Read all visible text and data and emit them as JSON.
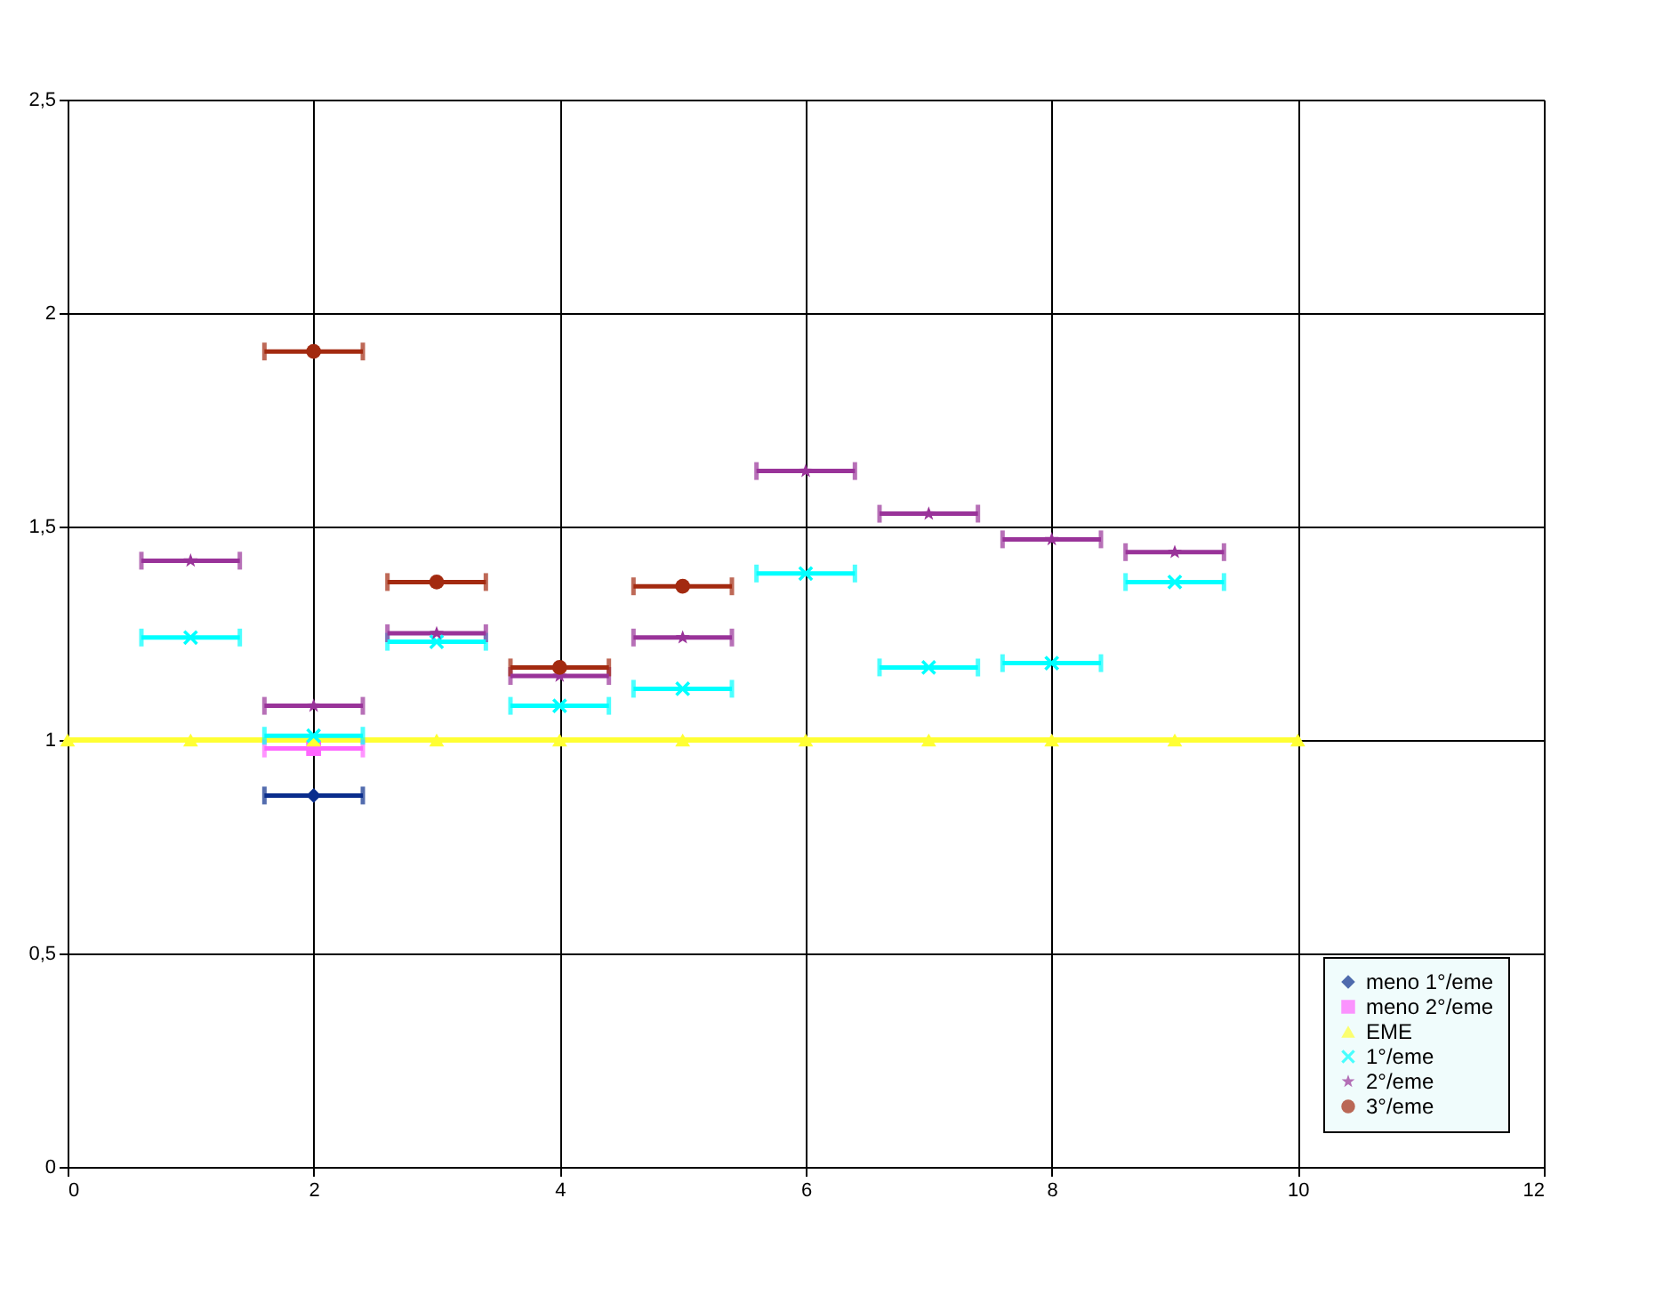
{
  "chart_data": {
    "type": "scatter",
    "xlim": [
      0,
      12
    ],
    "xticks": [
      0,
      2,
      4,
      6,
      8,
      10,
      12
    ],
    "ylim": [
      0,
      2.5
    ],
    "yticks": [
      0,
      {
        "value": 0.5,
        "label": "0,5"
      },
      1,
      {
        "value": 1.5,
        "label": "1,5"
      },
      2,
      {
        "value": 2.5,
        "label": "2,5"
      }
    ],
    "grid": true,
    "legend": "bottom right",
    "series": [
      {
        "name": "meno 1°/eme",
        "color": "#0a2d8c",
        "marker": "diamond",
        "x": [
          2
        ],
        "values": [
          0.87
        ],
        "xerrors": [
          0.4
        ]
      },
      {
        "name": "meno 2°/eme",
        "color": "#ff66ff",
        "marker": "square",
        "x": [
          2
        ],
        "values": [
          0.98
        ],
        "xerrors": [
          0.4
        ]
      },
      {
        "name": "EME",
        "type": "line",
        "color": "#ffff33",
        "marker": "triangle",
        "x": [
          0,
          1,
          2,
          3,
          4,
          5,
          6,
          7,
          8,
          9,
          10
        ],
        "values": [
          1,
          1,
          1,
          1,
          1,
          1,
          1,
          1,
          1,
          1,
          1
        ]
      },
      {
        "name": "1°/eme",
        "color": "#00ffff",
        "marker": "cross",
        "x": [
          1,
          2,
          3,
          4,
          5,
          6,
          7,
          8,
          9
        ],
        "values": [
          1.24,
          1.01,
          1.23,
          1.08,
          1.12,
          1.39,
          1.17,
          1.18,
          1.37
        ],
        "xerrors": [
          0.4,
          0.4,
          0.4,
          0.4,
          0.4,
          0.4,
          0.4,
          0.4,
          0.4
        ]
      },
      {
        "name": "2°/eme",
        "color": "#993399",
        "marker": "star",
        "x": [
          1,
          2,
          3,
          4,
          5,
          6,
          7,
          8,
          9
        ],
        "values": [
          1.42,
          1.08,
          1.25,
          1.15,
          1.24,
          1.63,
          1.53,
          1.47,
          1.44
        ],
        "xerrors": [
          0.4,
          0.4,
          0.4,
          0.4,
          0.4,
          0.4,
          0.4,
          0.4,
          0.4
        ]
      },
      {
        "name": "3°/eme",
        "color": "#a32a10",
        "marker": "circle",
        "x": [
          2,
          3,
          4,
          5
        ],
        "values": [
          1.91,
          1.37,
          1.17,
          1.36
        ],
        "xerrors": [
          0.4,
          0.4,
          0.4,
          0.4
        ]
      }
    ]
  }
}
